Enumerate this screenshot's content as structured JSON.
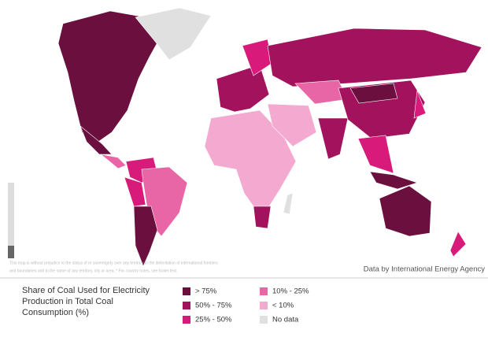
{
  "map": {
    "note": [
      "This map is without prejudice to the status of or sovereignty over any territory to the delimitation of international frontiers",
      "and boundaries and to the name of any territory, city or area. * For country notes, see footer text."
    ],
    "source": "Data by International Energy Agency",
    "legend": {
      "title": [
        "Share of Coal Used for Electricity",
        "Production in Total Coal",
        "Consumption (%)"
      ],
      "items": [
        {
          "label": "> 75%",
          "color": "#6b0f3f"
        },
        {
          "label": "50% - 75%",
          "color": "#a3135d"
        },
        {
          "label": "25% - 50%",
          "color": "#d81b7a"
        },
        {
          "label": "10% - 25%",
          "color": "#e866a6"
        },
        {
          "label": "< 10%",
          "color": "#f4aad0"
        },
        {
          "label": "No data",
          "color": "#e0e0e0"
        }
      ]
    }
  }
}
